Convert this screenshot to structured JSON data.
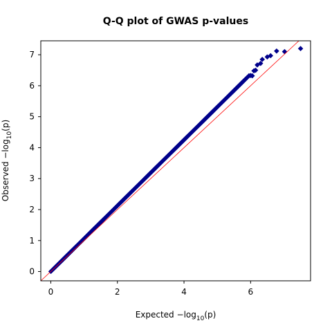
{
  "chart_data": {
    "type": "scatter",
    "title": "Q-Q plot of GWAS p-values",
    "xlabel": "Expected",
    "ylabel": "Observed",
    "axis_math_label": "−log",
    "axis_math_subscript": "10",
    "axis_math_arg": "(p)",
    "xlim": [
      -0.3,
      7.8
    ],
    "ylim": [
      -0.3,
      7.45
    ],
    "xticks": [
      0,
      2,
      4,
      6
    ],
    "yticks": [
      0,
      1,
      2,
      3,
      4,
      5,
      6,
      7
    ],
    "grid": false,
    "reference_line": {
      "slope": 1,
      "intercept": 0,
      "color": "#ff0000"
    },
    "marker": {
      "shape": "diamond",
      "fill": "#00008b"
    },
    "dense_segment": {
      "x_start": 0.0,
      "x_end": 5.9,
      "y_slope": 1.0625
    },
    "points": [
      {
        "x": 5.95,
        "y": 6.32
      },
      {
        "x": 6.0,
        "y": 6.33
      },
      {
        "x": 6.05,
        "y": 6.32
      },
      {
        "x": 6.1,
        "y": 6.48
      },
      {
        "x": 6.15,
        "y": 6.5
      },
      {
        "x": 6.2,
        "y": 6.67
      },
      {
        "x": 6.3,
        "y": 6.72
      },
      {
        "x": 6.35,
        "y": 6.85
      },
      {
        "x": 6.5,
        "y": 6.93
      },
      {
        "x": 6.6,
        "y": 6.97
      },
      {
        "x": 6.78,
        "y": 7.12
      },
      {
        "x": 7.02,
        "y": 7.1
      },
      {
        "x": 7.5,
        "y": 7.2
      }
    ],
    "colors": {
      "axes": "#000000",
      "background": "#ffffff"
    }
  }
}
